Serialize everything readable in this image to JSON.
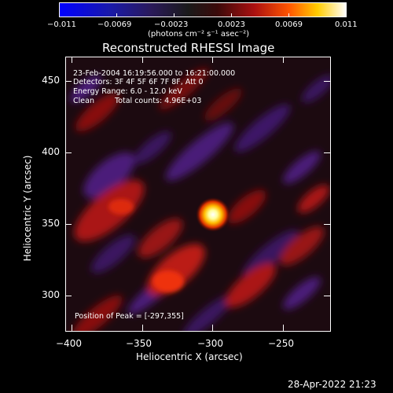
{
  "colorbar": {
    "colormap": "blue-black-red-yellow-white",
    "ticks": [
      "−0.011",
      "−0.0069",
      "−0.0023",
      "0.0023",
      "0.0069",
      "0.011"
    ],
    "units": "(photons cm⁻² s⁻¹ asec⁻²)"
  },
  "title": "Reconstructed RHESSI Image",
  "annotations": {
    "time_range": "23-Feb-2004 16:19:56.000 to 16:21:00.000",
    "detectors": "Detectors: 3F 4F 5F 6F 7F 8F, Att 0",
    "energy": "Energy Range: 6.0 - 12.0 keV",
    "method": "Clean",
    "counts": "Total counts: 4.96E+03",
    "peak": "Position of Peak = [-297,355]"
  },
  "x_axis": {
    "label": "Heliocentric X (arcsec)",
    "ticks": [
      "−400",
      "−350",
      "−300",
      "−250"
    ],
    "range": [
      -408,
      -218
    ]
  },
  "y_axis": {
    "label": "Heliocentric Y (arcsec)",
    "ticks": [
      "300",
      "350",
      "400",
      "450"
    ],
    "range": [
      272,
      468
    ]
  },
  "image": {
    "peak_x": -297,
    "peak_y": 355,
    "colors": {
      "peak": "#ffffff",
      "hot": "#ffcc33",
      "warm": "#dd2200",
      "cool": "#551177",
      "neutral": "#1a0808"
    }
  },
  "footer_date": "28-Apr-2022 21:23"
}
